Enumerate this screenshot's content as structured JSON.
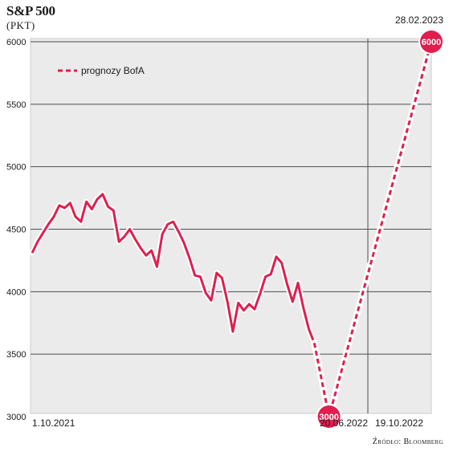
{
  "chart_data": {
    "type": "line",
    "title": "S&P 500",
    "subtitle": "(PKT)",
    "source": "Źródło: Bloomberg",
    "ylim": [
      3000,
      6000
    ],
    "yticks": [
      3000,
      3500,
      4000,
      4500,
      5000,
      5500,
      6000
    ],
    "grid": true,
    "legend_position": "top-left",
    "x_tick_labels": [
      "1.10.2021",
      "20.06.2022",
      "19.10.2022"
    ],
    "top_date_label": "28.02.2023",
    "colors": {
      "series": "#e01f4f",
      "background": "#ebebeb",
      "grid": "#4d4d4d"
    },
    "series": [
      {
        "style": "solid",
        "x": [
          "2021-10-01",
          "2021-10-08",
          "2021-10-15",
          "2021-10-22",
          "2021-10-29",
          "2021-11-05",
          "2021-11-12",
          "2021-11-19",
          "2021-11-26",
          "2021-12-03",
          "2021-12-10",
          "2021-12-17",
          "2021-12-24",
          "2021-12-31",
          "2022-01-07",
          "2022-01-14",
          "2022-01-21",
          "2022-01-28",
          "2022-02-04",
          "2022-02-11",
          "2022-02-18",
          "2022-02-25",
          "2022-03-04",
          "2022-03-11",
          "2022-03-18",
          "2022-03-25",
          "2022-04-01",
          "2022-04-08",
          "2022-04-15",
          "2022-04-22",
          "2022-04-29",
          "2022-05-06",
          "2022-05-13",
          "2022-05-20",
          "2022-05-27",
          "2022-06-03",
          "2022-06-10",
          "2022-06-17",
          "2022-06-24",
          "2022-07-01",
          "2022-07-08",
          "2022-07-15",
          "2022-07-22",
          "2022-07-29",
          "2022-08-05",
          "2022-08-12",
          "2022-08-19",
          "2022-08-26",
          "2022-09-02",
          "2022-09-09",
          "2022-09-16",
          "2022-09-23",
          "2022-09-30"
        ],
        "values": [
          4310,
          4400,
          4470,
          4540,
          4600,
          4690,
          4670,
          4710,
          4600,
          4560,
          4720,
          4660,
          4740,
          4780,
          4680,
          4650,
          4400,
          4440,
          4500,
          4420,
          4350,
          4290,
          4330,
          4200,
          4460,
          4540,
          4560,
          4480,
          4390,
          4270,
          4130,
          4120,
          3990,
          3930,
          4150,
          4110,
          3920,
          3680,
          3910,
          3850,
          3900,
          3860,
          3980,
          4120,
          4140,
          4280,
          4230,
          4060,
          3920,
          4070,
          3870,
          3700,
          3590
        ]
      },
      {
        "name": "prognozy BofA",
        "style": "dashed",
        "x": [
          "2022-09-30",
          "2022-10-19",
          "2023-02-28"
        ],
        "values": [
          3590,
          3000,
          6000
        ],
        "labels": [
          "",
          "3000",
          "6000"
        ]
      }
    ]
  }
}
